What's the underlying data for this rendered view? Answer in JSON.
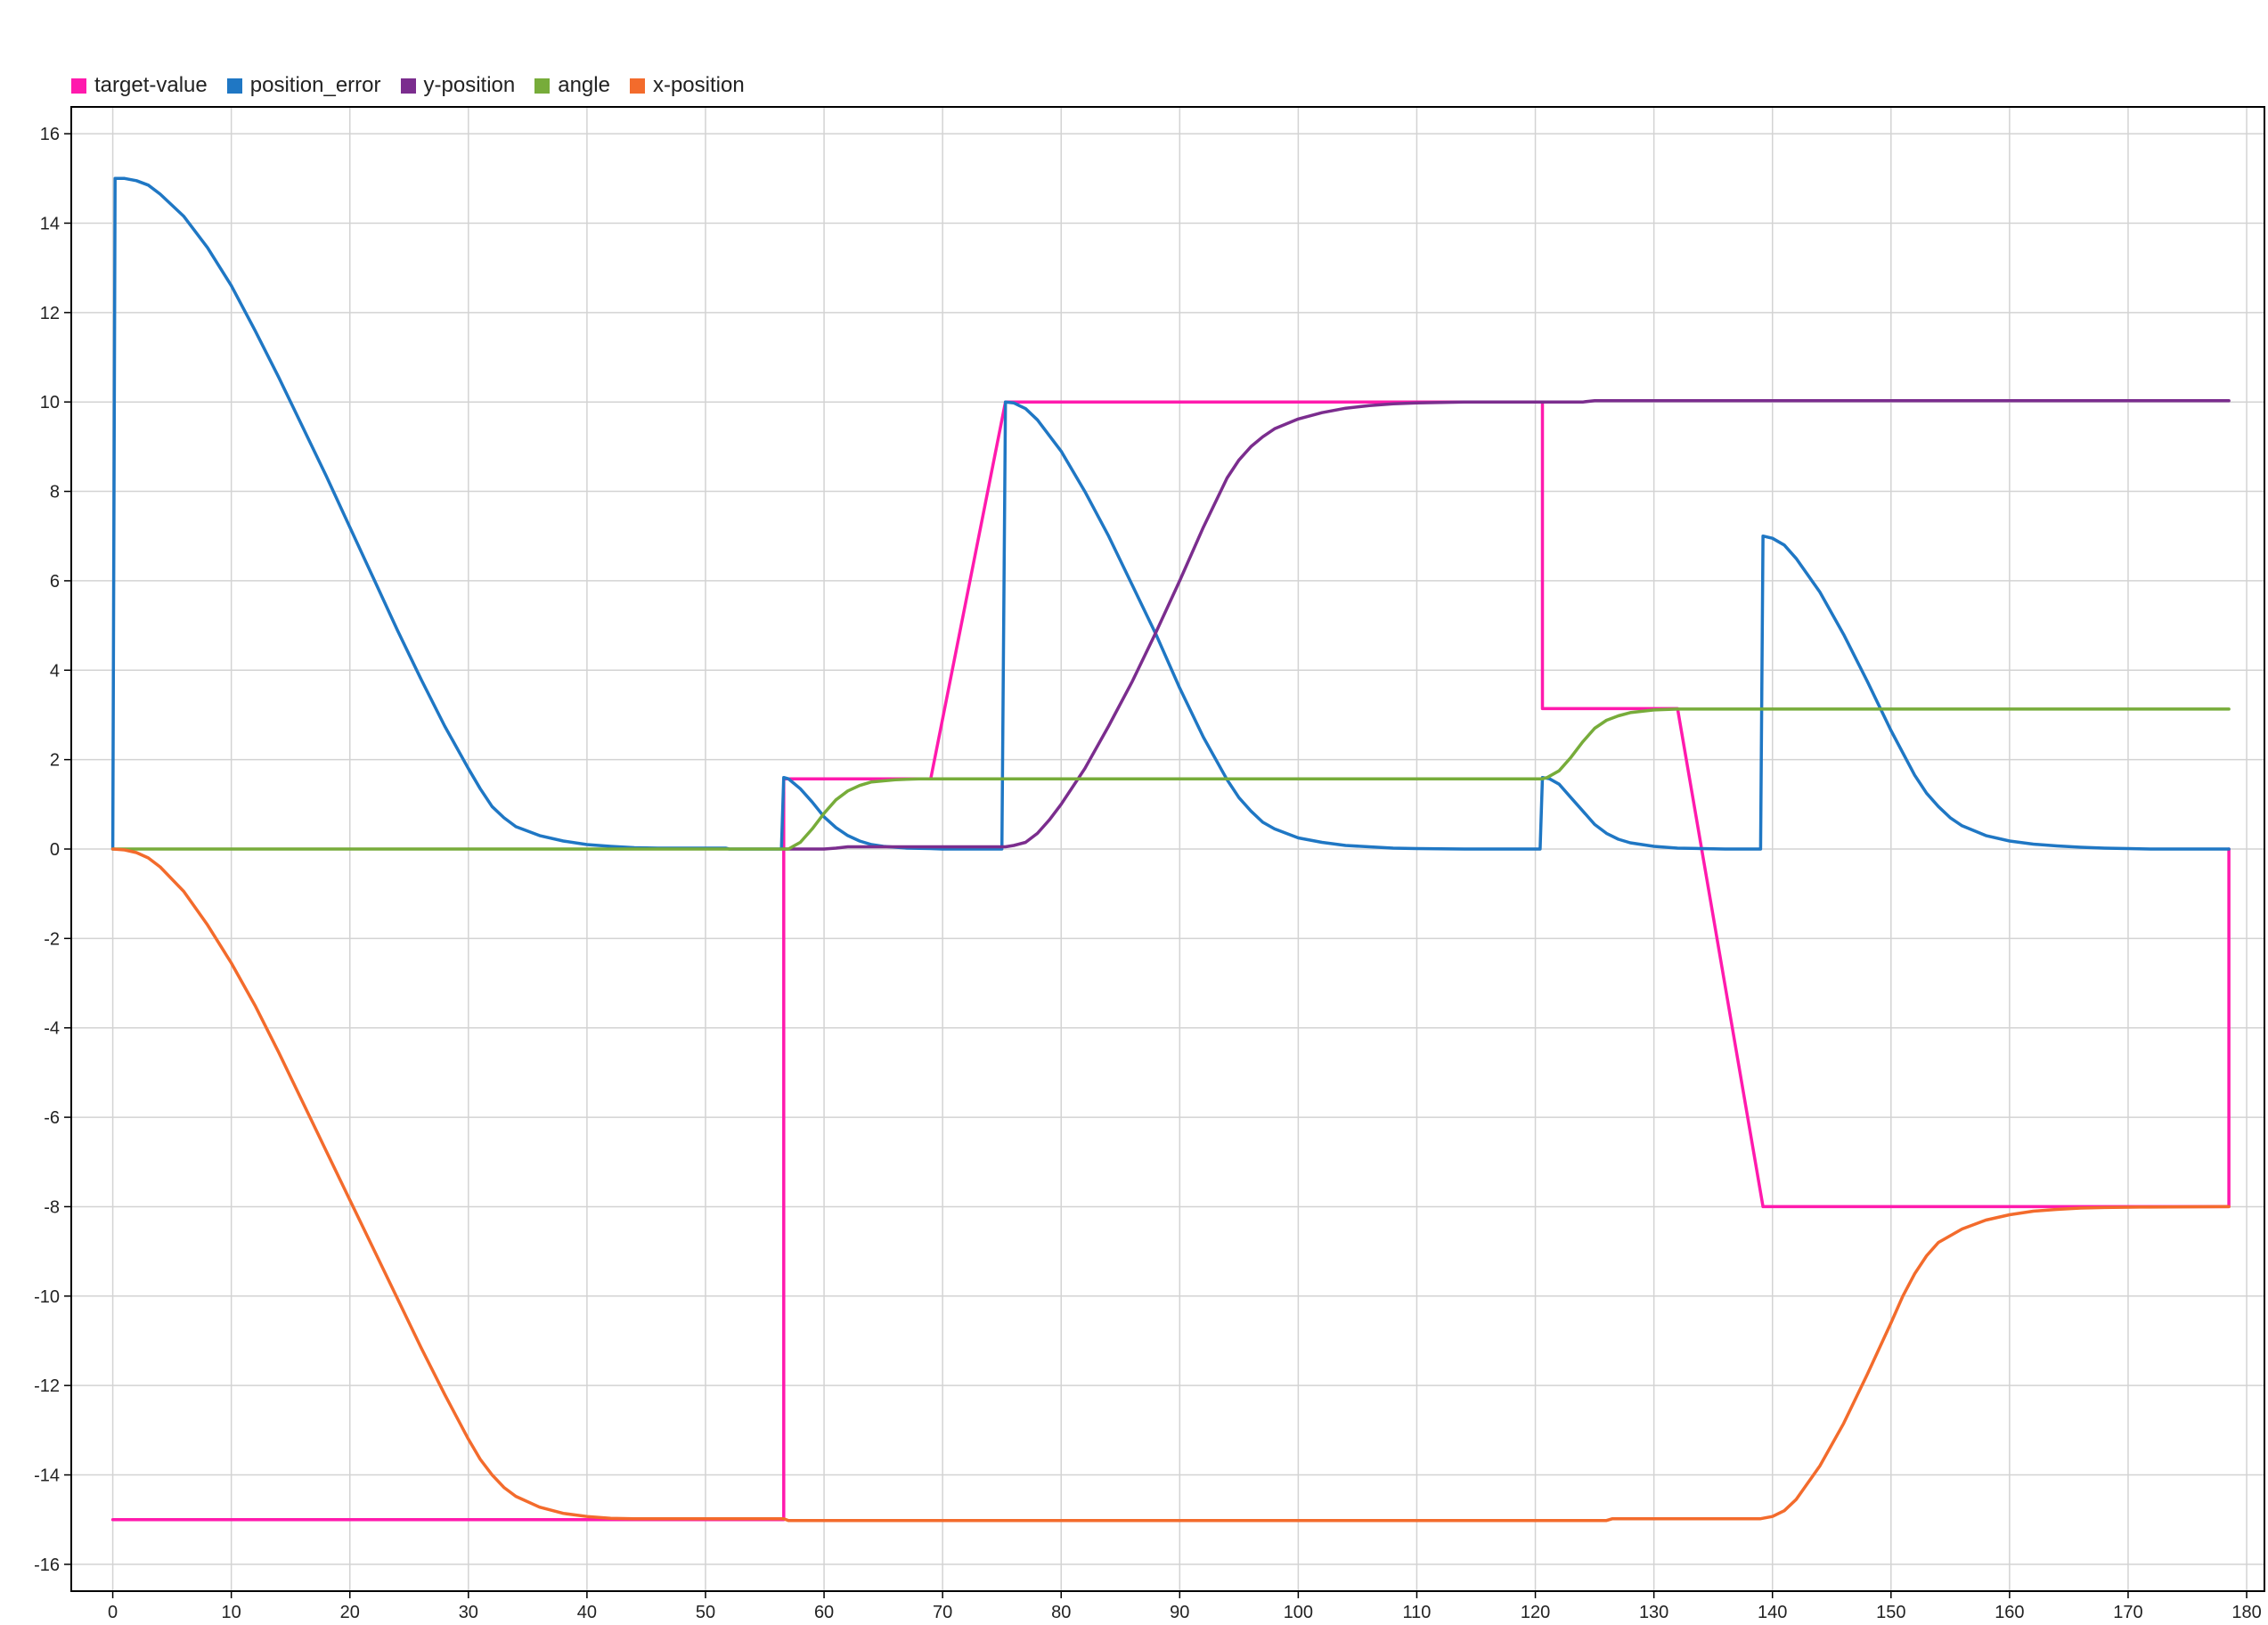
{
  "chart_data": {
    "type": "line",
    "title": "",
    "xlabel": "",
    "ylabel": "",
    "xlim": [
      -3.5,
      181.5
    ],
    "ylim": [
      -16.6,
      16.6
    ],
    "x_ticks": [
      0,
      10,
      20,
      30,
      40,
      50,
      60,
      70,
      80,
      90,
      100,
      110,
      120,
      130,
      140,
      150,
      160,
      170,
      180
    ],
    "y_ticks": [
      16,
      14,
      12,
      10,
      8,
      6,
      4,
      2,
      0,
      -2,
      -4,
      -6,
      -8,
      -10,
      -12,
      -14,
      -16
    ],
    "grid": true,
    "legend_position": "top-left",
    "series": [
      {
        "name": "target-value",
        "color": "#ff1aad",
        "points": [
          [
            0,
            -15
          ],
          [
            56.6,
            -15
          ],
          [
            56.6,
            1.57
          ],
          [
            69,
            1.57
          ],
          [
            75.3,
            10
          ],
          [
            120.6,
            10
          ],
          [
            120.6,
            3.14
          ],
          [
            132,
            3.14
          ],
          [
            139.2,
            -8
          ],
          [
            178.5,
            -8
          ],
          [
            178.5,
            0
          ]
        ]
      },
      {
        "name": "position_error",
        "color": "#1f77c4",
        "points": [
          [
            0,
            0
          ],
          [
            0.2,
            15
          ],
          [
            1,
            15
          ],
          [
            2,
            14.95
          ],
          [
            3,
            14.85
          ],
          [
            4,
            14.65
          ],
          [
            6,
            14.15
          ],
          [
            8,
            13.45
          ],
          [
            10,
            12.6
          ],
          [
            12,
            11.6
          ],
          [
            14,
            10.55
          ],
          [
            16,
            9.45
          ],
          [
            18,
            8.35
          ],
          [
            20,
            7.2
          ],
          [
            22,
            6.05
          ],
          [
            24,
            4.9
          ],
          [
            26,
            3.8
          ],
          [
            28,
            2.75
          ],
          [
            30,
            1.8
          ],
          [
            31,
            1.35
          ],
          [
            32,
            0.95
          ],
          [
            33,
            0.7
          ],
          [
            34,
            0.5
          ],
          [
            36,
            0.3
          ],
          [
            38,
            0.18
          ],
          [
            40,
            0.1
          ],
          [
            42,
            0.06
          ],
          [
            44,
            0.03
          ],
          [
            46,
            0.02
          ],
          [
            51.7,
            0.02
          ],
          [
            52,
            0
          ],
          [
            56.4,
            0
          ],
          [
            56.6,
            1.6
          ],
          [
            57,
            1.57
          ],
          [
            58,
            1.35
          ],
          [
            59,
            1.05
          ],
          [
            60,
            0.72
          ],
          [
            61,
            0.48
          ],
          [
            62,
            0.3
          ],
          [
            63,
            0.18
          ],
          [
            64,
            0.1
          ],
          [
            65,
            0.06
          ],
          [
            67,
            0.02
          ],
          [
            69,
            0.01
          ],
          [
            70,
            0
          ],
          [
            75,
            0
          ],
          [
            75.3,
            10
          ],
          [
            76,
            9.98
          ],
          [
            77,
            9.85
          ],
          [
            78,
            9.6
          ],
          [
            80,
            8.9
          ],
          [
            82,
            8.0
          ],
          [
            84,
            7.0
          ],
          [
            86,
            5.9
          ],
          [
            88,
            4.8
          ],
          [
            90,
            3.6
          ],
          [
            92,
            2.5
          ],
          [
            94,
            1.55
          ],
          [
            95,
            1.15
          ],
          [
            96,
            0.85
          ],
          [
            97,
            0.6
          ],
          [
            98,
            0.45
          ],
          [
            100,
            0.25
          ],
          [
            102,
            0.15
          ],
          [
            104,
            0.08
          ],
          [
            106,
            0.05
          ],
          [
            108,
            0.02
          ],
          [
            110,
            0.01
          ],
          [
            114,
            0
          ],
          [
            120.4,
            0
          ],
          [
            120.6,
            1.6
          ],
          [
            121.2,
            1.57
          ],
          [
            122,
            1.45
          ],
          [
            123,
            1.15
          ],
          [
            124,
            0.85
          ],
          [
            125,
            0.55
          ],
          [
            126,
            0.35
          ],
          [
            127,
            0.22
          ],
          [
            128,
            0.14
          ],
          [
            130,
            0.06
          ],
          [
            132,
            0.02
          ],
          [
            134,
            0.01
          ],
          [
            136,
            0
          ],
          [
            139,
            0
          ],
          [
            139.2,
            7
          ],
          [
            140,
            6.95
          ],
          [
            141,
            6.8
          ],
          [
            142,
            6.5
          ],
          [
            144,
            5.75
          ],
          [
            146,
            4.8
          ],
          [
            148,
            3.75
          ],
          [
            150,
            2.65
          ],
          [
            152,
            1.65
          ],
          [
            153,
            1.25
          ],
          [
            154,
            0.95
          ],
          [
            155,
            0.7
          ],
          [
            156,
            0.52
          ],
          [
            158,
            0.3
          ],
          [
            160,
            0.18
          ],
          [
            162,
            0.11
          ],
          [
            164,
            0.07
          ],
          [
            166,
            0.04
          ],
          [
            168,
            0.02
          ],
          [
            170,
            0.01
          ],
          [
            172,
            0
          ],
          [
            178.5,
            0
          ]
        ]
      },
      {
        "name": "y-position",
        "color": "#7b2d8e",
        "points": [
          [
            56.6,
            0
          ],
          [
            60,
            0
          ],
          [
            61,
            0.02
          ],
          [
            62,
            0.05
          ],
          [
            69,
            0.05
          ],
          [
            75.3,
            0.05
          ],
          [
            76,
            0.08
          ],
          [
            77,
            0.15
          ],
          [
            78,
            0.35
          ],
          [
            79,
            0.65
          ],
          [
            80,
            1.0
          ],
          [
            82,
            1.8
          ],
          [
            84,
            2.75
          ],
          [
            86,
            3.75
          ],
          [
            88,
            4.85
          ],
          [
            90,
            6.0
          ],
          [
            92,
            7.2
          ],
          [
            94,
            8.3
          ],
          [
            95,
            8.7
          ],
          [
            96,
            9.0
          ],
          [
            97,
            9.22
          ],
          [
            98,
            9.4
          ],
          [
            100,
            9.62
          ],
          [
            102,
            9.76
          ],
          [
            104,
            9.86
          ],
          [
            106,
            9.92
          ],
          [
            108,
            9.96
          ],
          [
            110,
            9.98
          ],
          [
            114,
            10
          ],
          [
            124,
            10
          ],
          [
            125,
            10.03
          ],
          [
            178.5,
            10.03
          ]
        ]
      },
      {
        "name": "angle",
        "color": "#77ac3a",
        "points": [
          [
            0,
            0
          ],
          [
            56.6,
            0
          ],
          [
            57,
            0
          ],
          [
            58,
            0.15
          ],
          [
            59,
            0.45
          ],
          [
            60,
            0.8
          ],
          [
            61,
            1.1
          ],
          [
            62,
            1.3
          ],
          [
            63,
            1.42
          ],
          [
            64,
            1.5
          ],
          [
            66,
            1.55
          ],
          [
            68,
            1.57
          ],
          [
            120.6,
            1.57
          ],
          [
            121,
            1.6
          ],
          [
            122,
            1.75
          ],
          [
            123,
            2.05
          ],
          [
            124,
            2.4
          ],
          [
            125,
            2.7
          ],
          [
            126,
            2.88
          ],
          [
            127,
            2.98
          ],
          [
            128,
            3.05
          ],
          [
            130,
            3.11
          ],
          [
            132,
            3.13
          ],
          [
            178.5,
            3.13
          ]
        ]
      },
      {
        "name": "x-position",
        "color": "#f36b2c",
        "points": [
          [
            0,
            0
          ],
          [
            1,
            -0.02
          ],
          [
            2,
            -0.08
          ],
          [
            3,
            -0.2
          ],
          [
            4,
            -0.4
          ],
          [
            6,
            -0.95
          ],
          [
            8,
            -1.7
          ],
          [
            10,
            -2.55
          ],
          [
            12,
            -3.5
          ],
          [
            14,
            -4.55
          ],
          [
            16,
            -5.65
          ],
          [
            18,
            -6.75
          ],
          [
            20,
            -7.85
          ],
          [
            22,
            -8.95
          ],
          [
            24,
            -10.05
          ],
          [
            26,
            -11.15
          ],
          [
            28,
            -12.2
          ],
          [
            30,
            -13.2
          ],
          [
            31,
            -13.65
          ],
          [
            32,
            -14.0
          ],
          [
            33,
            -14.28
          ],
          [
            34,
            -14.48
          ],
          [
            36,
            -14.72
          ],
          [
            38,
            -14.86
          ],
          [
            40,
            -14.93
          ],
          [
            42,
            -14.97
          ],
          [
            44,
            -14.98
          ],
          [
            56.6,
            -14.98
          ],
          [
            57,
            -15.02
          ],
          [
            126,
            -15.02
          ],
          [
            126.5,
            -14.98
          ],
          [
            139,
            -14.98
          ],
          [
            140,
            -14.93
          ],
          [
            141,
            -14.8
          ],
          [
            142,
            -14.55
          ],
          [
            144,
            -13.8
          ],
          [
            146,
            -12.85
          ],
          [
            148,
            -11.75
          ],
          [
            150,
            -10.6
          ],
          [
            151,
            -10.0
          ],
          [
            152,
            -9.5
          ],
          [
            153,
            -9.1
          ],
          [
            154,
            -8.8
          ],
          [
            156,
            -8.5
          ],
          [
            158,
            -8.3
          ],
          [
            160,
            -8.18
          ],
          [
            162,
            -8.1
          ],
          [
            164,
            -8.06
          ],
          [
            166,
            -8.03
          ],
          [
            168,
            -8.02
          ],
          [
            171,
            -8.01
          ],
          [
            178.5,
            -8.0
          ]
        ]
      }
    ]
  }
}
